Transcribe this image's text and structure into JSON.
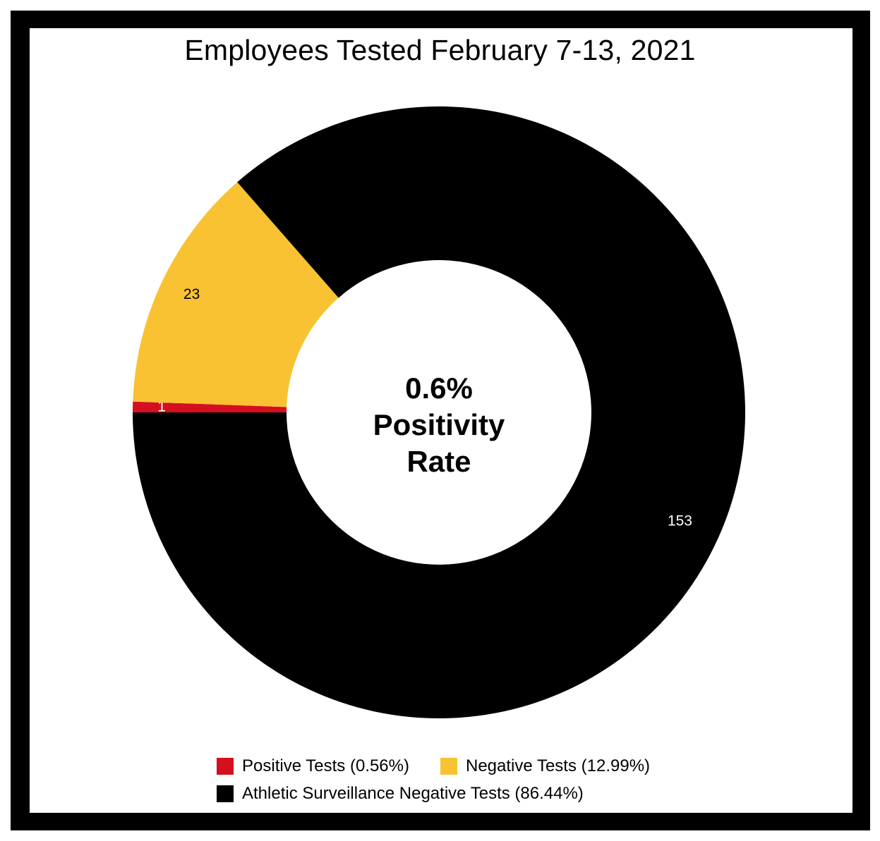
{
  "chart_data": {
    "type": "pie",
    "style": "donut",
    "title": "Employees Tested February 7-13, 2021",
    "center_label": [
      "0.6%",
      "Positivity",
      "Rate"
    ],
    "categories": [
      "Positive Tests (0.56%)",
      "Negative Tests (12.99%)",
      "Athletic Surveillance Negative Tests (86.44%)"
    ],
    "values": [
      1,
      23,
      153
    ],
    "data_labels": [
      "1",
      "23",
      "153"
    ],
    "colors": [
      "#d50f1f",
      "#f8c232",
      "#000000"
    ],
    "label_colors": [
      "#ffffff",
      "#000000",
      "#ffffff"
    ],
    "legend_position": "bottom"
  }
}
